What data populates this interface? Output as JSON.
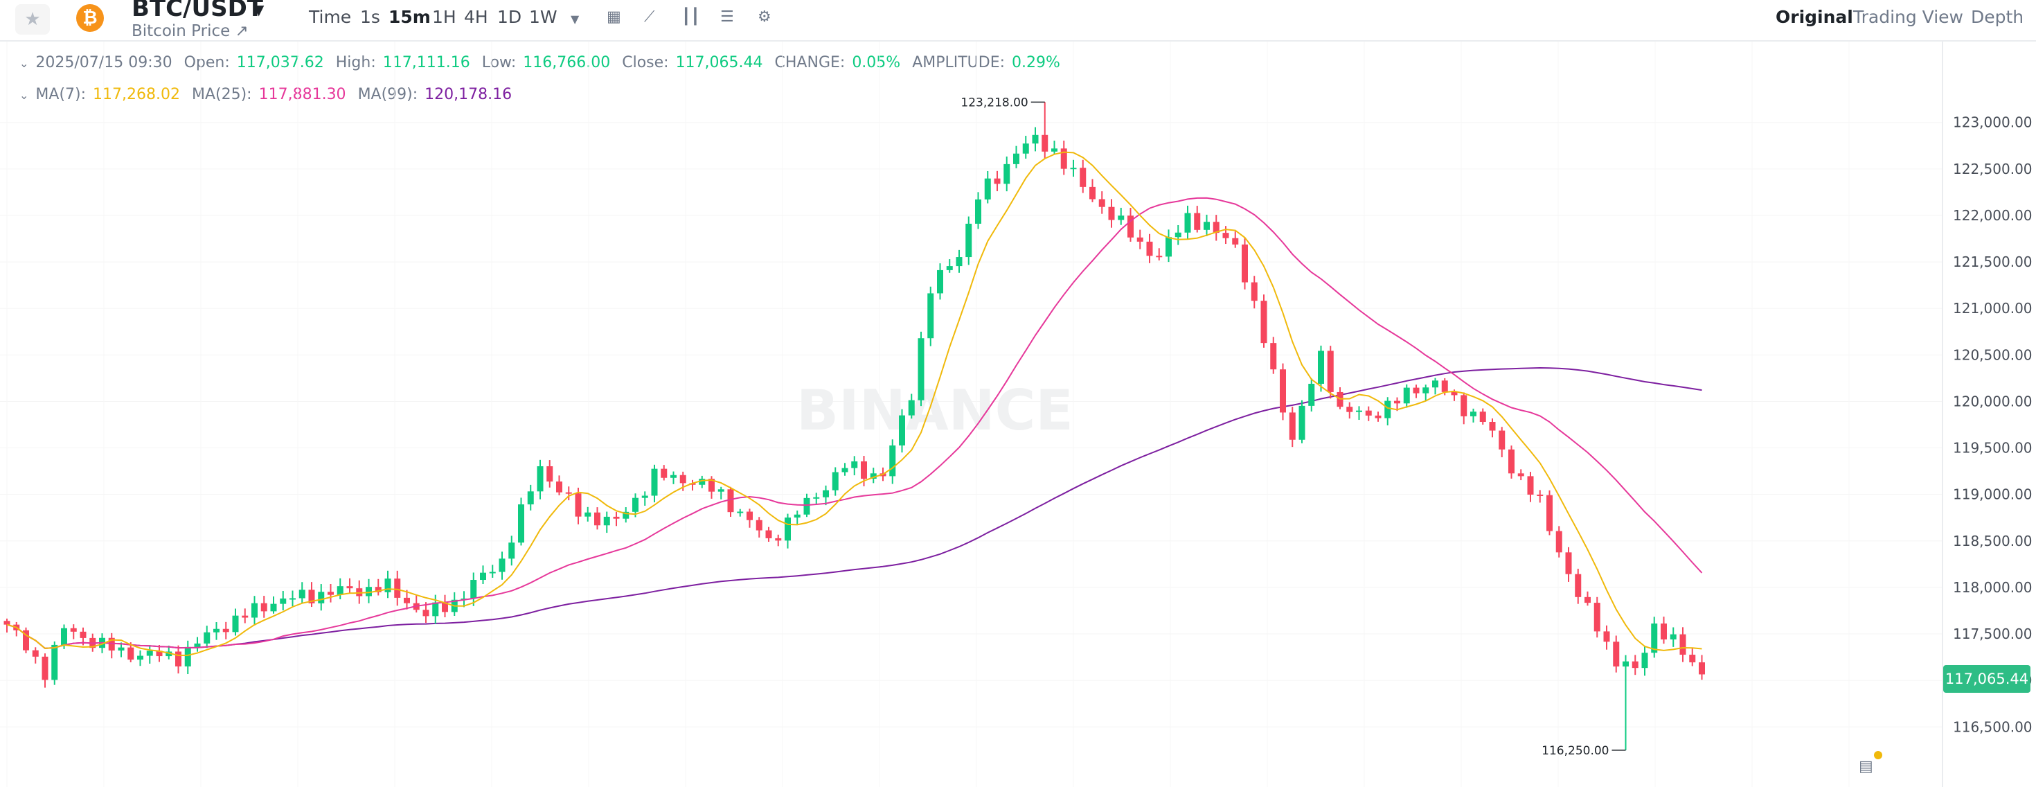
{
  "header": {
    "favorite_icon": "star-icon",
    "coin_icon": "bitcoin-icon",
    "pair": "BTC/USDT",
    "subtitle": "Bitcoin Price ↗",
    "intervals": [
      "Time",
      "1s",
      "15m",
      "1H",
      "4H",
      "1D",
      "1W"
    ],
    "active_interval": "15m",
    "tools": [
      "chevron-down-icon",
      "calendar-icon",
      "indicator-icon",
      "candle-type-icon",
      "layout-icon",
      "gear-icon"
    ],
    "views": [
      "Original",
      "Trading View",
      "Depth"
    ],
    "active_view": "Original"
  },
  "ohlc": {
    "date": "2025/07/15 09:30",
    "open_label": "Open:",
    "open": "117,037.62",
    "high_label": "High:",
    "high": "117,111.16",
    "low_label": "Low:",
    "low": "116,766.00",
    "close_label": "Close:",
    "close": "117,065.44",
    "change_label": "CHANGE:",
    "change": "0.05%",
    "amplitude_label": "AMPLITUDE:",
    "amplitude": "0.29%"
  },
  "ma_legend": {
    "ma7_label": "MA(7):",
    "ma7": "117,268.02",
    "ma25_label": "MA(25):",
    "ma25": "117,881.30",
    "ma99_label": "MA(99):",
    "ma99": "120,178.16"
  },
  "current_price": "117,065.44",
  "watermark": "BINANCE",
  "colors": {
    "up": "#0ecb81",
    "down": "#f6465d",
    "ma7": "#f0b90b",
    "ma25": "#e6389a",
    "ma99": "#7d1fa0"
  },
  "chart_data": {
    "type": "candlestick",
    "interval": "15m",
    "ylim": [
      116100,
      123400
    ],
    "y_ticks": [
      "123,000.00",
      "122,500.00",
      "122,000.00",
      "121,500.00",
      "121,000.00",
      "120,500.00",
      "120,000.00",
      "119,500.00",
      "119,000.00",
      "118,500.00",
      "118,000.00",
      "117,500.00",
      "117,000.00",
      "116,500.00"
    ],
    "y_tick_values": [
      123000,
      122500,
      122000,
      121500,
      121000,
      120500,
      120000,
      119500,
      119000,
      118500,
      118000,
      117500,
      117000,
      116500
    ],
    "annotations": [
      {
        "label": "123,218.00",
        "value": 123218,
        "index": 109
      },
      {
        "label": "116,250.00",
        "value": 116250,
        "index": 170
      }
    ],
    "anchors_close": [
      [
        0,
        117600
      ],
      [
        4,
        117100
      ],
      [
        6,
        117550
      ],
      [
        12,
        117300
      ],
      [
        18,
        117250
      ],
      [
        22,
        117550
      ],
      [
        28,
        117850
      ],
      [
        34,
        117950
      ],
      [
        40,
        118000
      ],
      [
        44,
        117700
      ],
      [
        47,
        117850
      ],
      [
        52,
        118300
      ],
      [
        56,
        119300
      ],
      [
        60,
        118800
      ],
      [
        64,
        118700
      ],
      [
        68,
        119200
      ],
      [
        72,
        119150
      ],
      [
        75,
        119000
      ],
      [
        78,
        118700
      ],
      [
        80,
        118500
      ],
      [
        84,
        118900
      ],
      [
        88,
        119300
      ],
      [
        92,
        119200
      ],
      [
        95,
        120100
      ],
      [
        97,
        121200
      ],
      [
        100,
        121600
      ],
      [
        102,
        122200
      ],
      [
        104,
        122400
      ],
      [
        106,
        122700
      ],
      [
        108,
        122800
      ],
      [
        110,
        122700
      ],
      [
        113,
        122300
      ],
      [
        116,
        122000
      ],
      [
        119,
        121700
      ],
      [
        121,
        121550
      ],
      [
        124,
        122000
      ],
      [
        127,
        121800
      ],
      [
        129,
        121700
      ],
      [
        131,
        121000
      ],
      [
        133,
        120300
      ],
      [
        135,
        119600
      ],
      [
        138,
        120500
      ],
      [
        140,
        119900
      ],
      [
        143,
        119850
      ],
      [
        146,
        120000
      ],
      [
        148,
        120150
      ],
      [
        150,
        120200
      ],
      [
        152,
        120000
      ],
      [
        155,
        119800
      ],
      [
        158,
        119300
      ],
      [
        161,
        118900
      ],
      [
        163,
        118400
      ],
      [
        165,
        117900
      ],
      [
        167,
        117600
      ],
      [
        169,
        117200
      ],
      [
        171,
        117100
      ],
      [
        173,
        117600
      ],
      [
        175,
        117400
      ],
      [
        177,
        117200
      ],
      [
        178,
        117065
      ]
    ],
    "ma_periods": [
      7,
      25,
      99
    ],
    "ma99_start": 120178
  }
}
